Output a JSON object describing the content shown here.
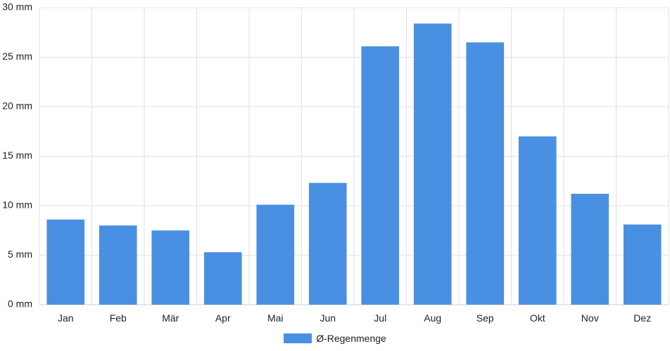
{
  "chart_data": {
    "type": "bar",
    "categories": [
      "Jan",
      "Feb",
      "Mär",
      "Apr",
      "Mai",
      "Jun",
      "Jul",
      "Aug",
      "Sep",
      "Okt",
      "Nov",
      "Dez"
    ],
    "series": [
      {
        "name": "Ø-Regenmenge",
        "values": [
          8.6,
          8.0,
          7.5,
          5.3,
          10.1,
          12.3,
          26.1,
          28.4,
          26.5,
          17.0,
          11.2,
          8.1
        ],
        "color": "#4a90e2"
      }
    ],
    "y_ticks": [
      "0 mm",
      "5 mm",
      "10 mm",
      "15 mm",
      "20 mm",
      "25 mm",
      "30 mm"
    ],
    "y_unit": "mm",
    "ylim": [
      0,
      30
    ],
    "grid": true,
    "legend_position": "bottom"
  }
}
